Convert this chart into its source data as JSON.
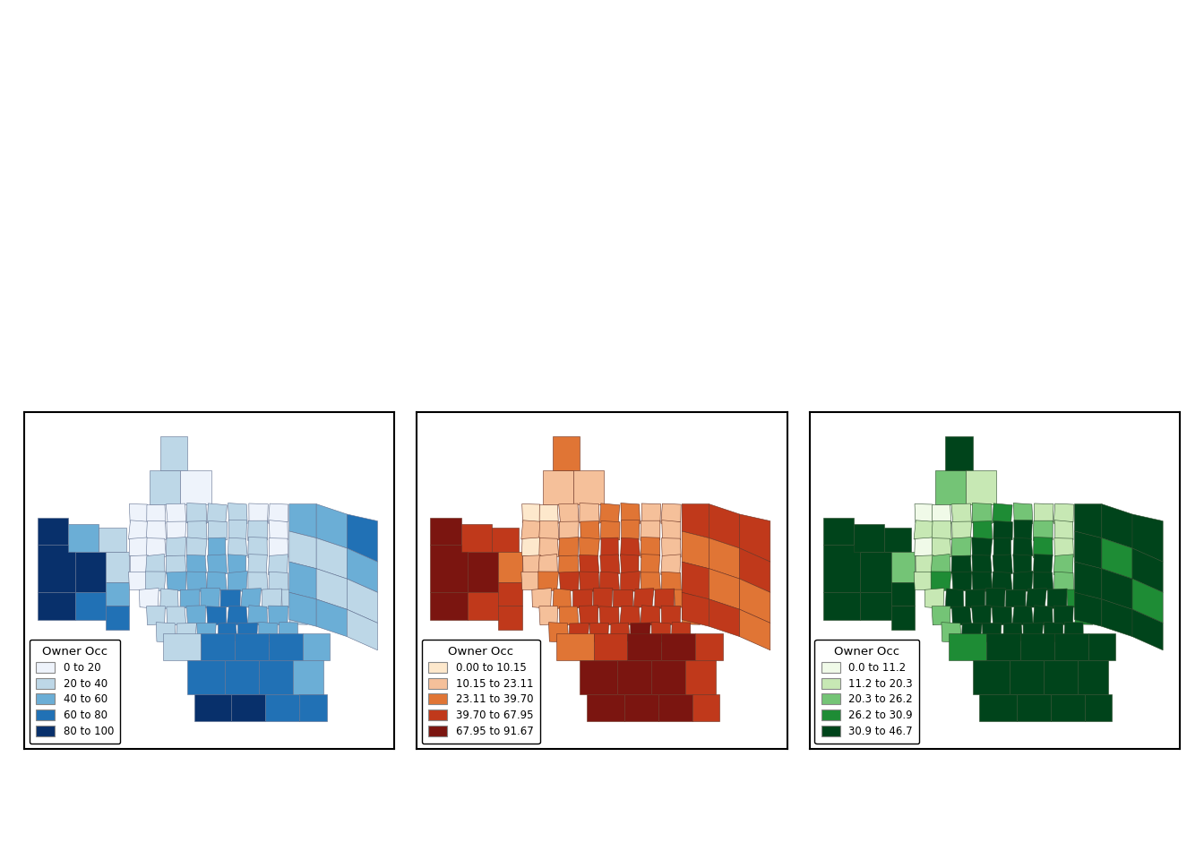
{
  "maps": [
    {
      "legend_title": "Owner Occ",
      "legend_labels": [
        "0 to 20",
        "20 to 40",
        "40 to 60",
        "60 to 80",
        "80 to 100"
      ],
      "colors": [
        "#eef3fb",
        "#bdd7e7",
        "#6baed6",
        "#2171b5",
        "#08306b"
      ],
      "edge_color": "#607090",
      "edge_width": 0.4
    },
    {
      "legend_title": "Owner Occ",
      "legend_labels": [
        "0.00 to 10.15",
        "10.15 to 23.11",
        "23.11 to 39.70",
        "39.70 to 67.95",
        "67.95 to 91.67"
      ],
      "colors": [
        "#fde8cc",
        "#f5c09a",
        "#e07535",
        "#c0391b",
        "#7b1510"
      ],
      "edge_color": "#6a3020",
      "edge_width": 0.4
    },
    {
      "legend_title": "Owner Occ",
      "legend_labels": [
        "0.0 to 11.2",
        "11.2 to 20.3",
        "20.3 to 26.2",
        "26.2 to 30.9",
        "30.9 to 46.7"
      ],
      "colors": [
        "#f0fae8",
        "#c7e8b4",
        "#74c476",
        "#1e8c35",
        "#00441b"
      ],
      "edge_color": "#2a4a2a",
      "edge_width": 0.4
    }
  ],
  "figure_bg": "#ffffff",
  "panel_bg": "#ffffff",
  "border_color": "#000000",
  "legend_font_size": 8.5,
  "legend_title_size": 9.5,
  "bins_per_map": [
    [
      20,
      40,
      60,
      80,
      100
    ],
    [
      10.15,
      23.11,
      39.7,
      67.95,
      91.67
    ],
    [
      11.2,
      20.3,
      26.2,
      30.9,
      46.7
    ]
  ]
}
